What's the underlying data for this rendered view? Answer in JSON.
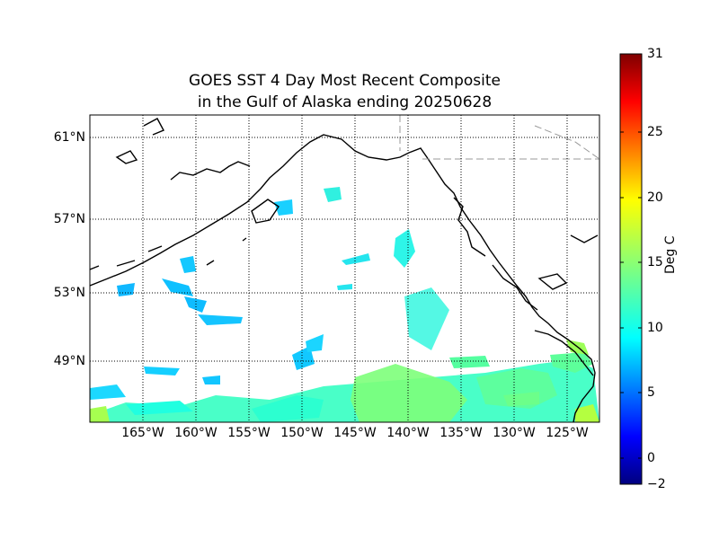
{
  "title": {
    "line1": "GOES SST 4 Day Most Recent Composite",
    "line2": "in the Gulf of Alaska ending 20250628"
  },
  "map": {
    "latitude_labels": [
      "61°N",
      "57°N",
      "53°N",
      "49°N"
    ],
    "longitude_labels": [
      "165°W",
      "160°W",
      "155°W",
      "150°W",
      "145°W",
      "140°W",
      "135°W",
      "130°W",
      "125°W"
    ],
    "gridlines": "dotted",
    "border_line": "dashed gray",
    "coastline_color": "#000000"
  },
  "colorbar": {
    "label": "Deg C",
    "min": -2,
    "max": 31,
    "tick_labels": [
      "31",
      "25",
      "20",
      "15",
      "10",
      "5",
      "0",
      "−2"
    ],
    "colormap": "jet"
  }
}
